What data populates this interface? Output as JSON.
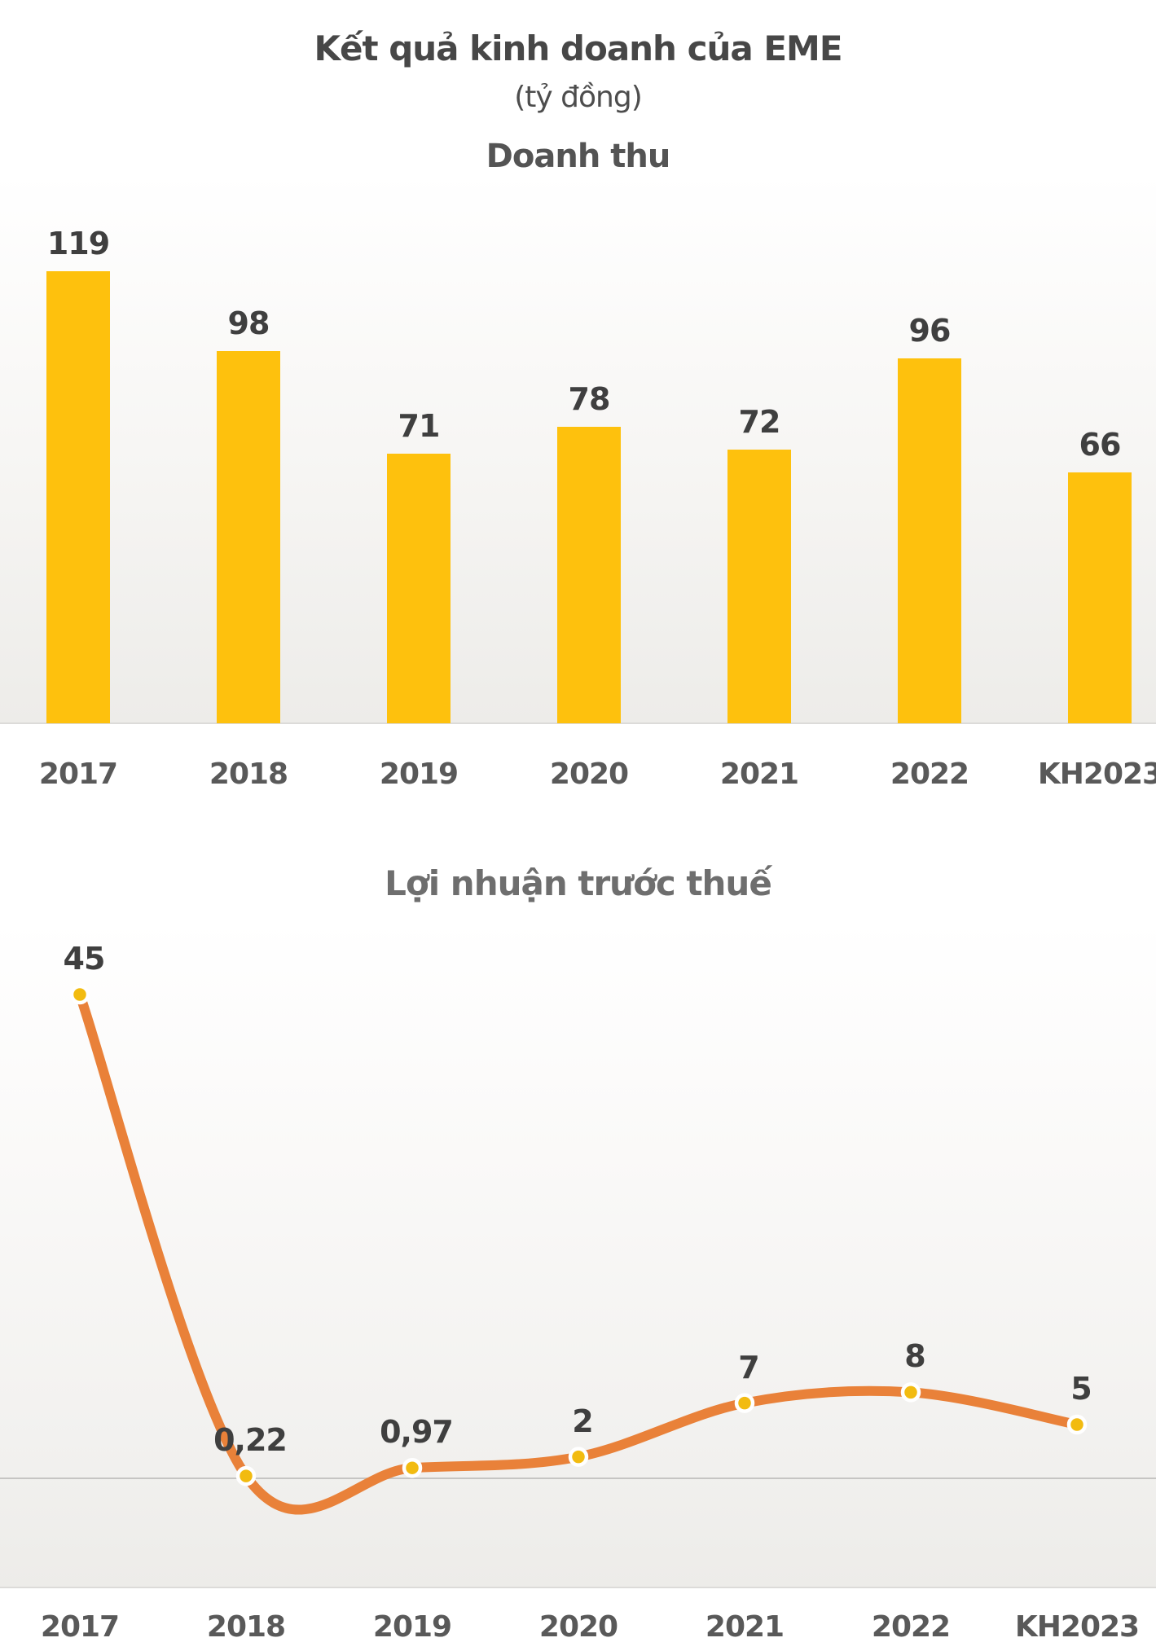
{
  "header": {
    "title": "Kết quả kinh doanh của EME",
    "unit": "(tỷ đồng)"
  },
  "chart_data": [
    {
      "id": "revenue",
      "type": "bar",
      "title": "Doanh thu",
      "categories": [
        "2017",
        "2018",
        "2019",
        "2020",
        "2021",
        "2022",
        "KH2023"
      ],
      "values": [
        119,
        98,
        71,
        78,
        72,
        96,
        66
      ],
      "value_labels": [
        "119",
        "98",
        "71",
        "78",
        "72",
        "96",
        "66"
      ],
      "unit": "tỷ đồng",
      "ylim": [
        0,
        135
      ],
      "bar_color": "#FEC10D",
      "grid": false,
      "legend": "none",
      "value_label_color": "#3F3F3F",
      "axis_label_color": "#595959"
    },
    {
      "id": "profit",
      "type": "line",
      "title": "Lợi nhuận trước thuế",
      "categories": [
        "2017",
        "2018",
        "2019",
        "2020",
        "2021",
        "2022",
        "KH2023"
      ],
      "values": [
        45,
        0.22,
        0.97,
        2,
        7,
        8,
        5
      ],
      "value_labels": [
        "45",
        "0,22",
        "0,97",
        "2",
        "7",
        "8",
        "5"
      ],
      "smooth": true,
      "line_color": "#E98139",
      "marker_color": "#F2BB10",
      "marker_ring_color": "#FFFFFF",
      "zero_line": true,
      "zero_line_color": "#C6C5C3",
      "ylim": [
        -10,
        52
      ],
      "grid": false,
      "legend": "none",
      "value_label_color": "#3F3F3F",
      "axis_label_color": "#595959"
    }
  ]
}
